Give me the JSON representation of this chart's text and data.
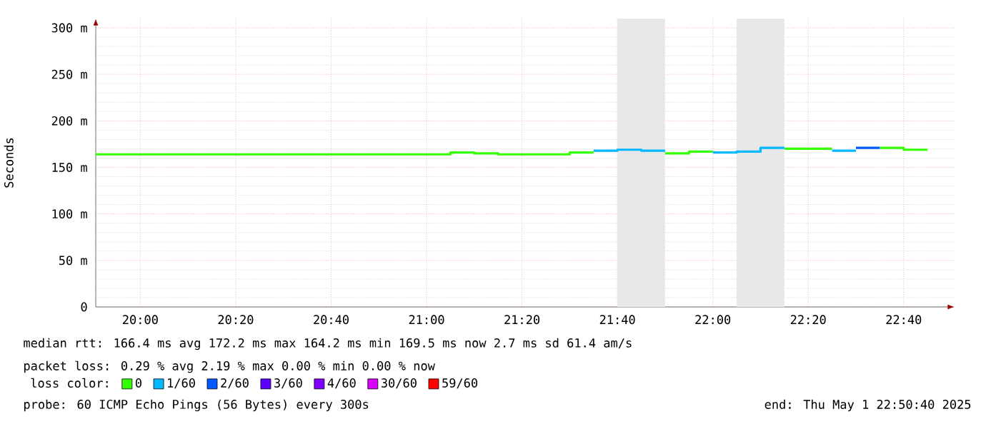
{
  "chart_data": {
    "type": "step",
    "ylabel": "Seconds",
    "legend_title": "loss color:",
    "x": [
      19.8444,
      19.9167,
      20,
      20.0833,
      20.1667,
      20.25,
      20.3333,
      20.4167,
      20.5,
      20.5833,
      20.6667,
      20.75,
      20.8333,
      20.9167,
      21,
      21.0833,
      21.1667,
      21.25,
      21.3333,
      21.4167,
      21.5,
      21.5833,
      21.6667,
      21.75,
      21.8333,
      21.9167,
      22,
      22.0833,
      22.1667,
      22.25,
      22.3333,
      22.4167,
      22.5,
      22.5833,
      22.6667,
      22.75
    ],
    "series": [
      {
        "name": "0",
        "color": "#33ff00",
        "values": [
          164,
          164,
          164,
          164,
          164,
          164,
          164,
          164,
          164,
          164,
          164,
          164,
          164,
          164,
          164,
          166,
          165,
          164,
          164,
          164,
          166,
          166,
          null,
          null,
          165,
          167,
          167,
          null,
          null,
          170,
          170,
          170,
          null,
          171,
          169,
          169
        ]
      },
      {
        "name": "1/60",
        "color": "#00b8ff",
        "values": [
          null,
          null,
          null,
          null,
          null,
          null,
          null,
          null,
          null,
          null,
          null,
          null,
          null,
          null,
          null,
          null,
          null,
          null,
          null,
          null,
          null,
          168,
          169,
          168,
          168,
          null,
          166,
          167,
          171,
          171,
          null,
          168,
          168,
          null,
          null,
          null
        ]
      },
      {
        "name": "2/60",
        "color": "#0059ff",
        "values": [
          null,
          null,
          null,
          null,
          null,
          null,
          null,
          null,
          null,
          null,
          null,
          null,
          null,
          null,
          null,
          null,
          null,
          null,
          null,
          null,
          null,
          null,
          null,
          null,
          null,
          null,
          null,
          null,
          null,
          null,
          null,
          null,
          171,
          171,
          null,
          null
        ]
      },
      {
        "name": "3/60",
        "color": "#5e00ff",
        "values": [
          null,
          null,
          null,
          null,
          null,
          null,
          null,
          null,
          null,
          null,
          null,
          null,
          null,
          null,
          null,
          null,
          null,
          null,
          null,
          null,
          null,
          null,
          null,
          null,
          null,
          null,
          null,
          null,
          null,
          null,
          null,
          null,
          null,
          null,
          null,
          null
        ]
      },
      {
        "name": "4/60",
        "color": "#7e00ff",
        "values": [
          null,
          null,
          null,
          null,
          null,
          null,
          null,
          null,
          null,
          null,
          null,
          null,
          null,
          null,
          null,
          null,
          null,
          null,
          null,
          null,
          null,
          null,
          null,
          null,
          null,
          null,
          null,
          null,
          null,
          null,
          null,
          null,
          null,
          null,
          null,
          null
        ]
      },
      {
        "name": "30/60",
        "color": "#dd00ff",
        "values": [
          null,
          null,
          null,
          null,
          null,
          null,
          null,
          null,
          null,
          null,
          null,
          null,
          null,
          null,
          null,
          null,
          null,
          null,
          null,
          null,
          null,
          null,
          null,
          null,
          null,
          null,
          null,
          null,
          null,
          null,
          null,
          null,
          null,
          null,
          null,
          null
        ]
      },
      {
        "name": "59/60",
        "color": "#ff0000",
        "values": [
          null,
          null,
          null,
          null,
          null,
          null,
          null,
          null,
          null,
          null,
          null,
          null,
          null,
          null,
          null,
          null,
          null,
          null,
          null,
          null,
          null,
          null,
          null,
          null,
          null,
          null,
          null,
          null,
          null,
          null,
          null,
          null,
          null,
          null,
          null,
          null
        ]
      }
    ],
    "bands": [
      {
        "axis": "x",
        "from": 21.6667,
        "to": 21.8333,
        "color": "#e8e8e8"
      },
      {
        "axis": "x",
        "from": 22.0833,
        "to": 22.25,
        "color": "#e8e8e8"
      }
    ],
    "xlim": [
      19.8444,
      22.8444
    ],
    "ylim": [
      0,
      310
    ],
    "xticks": [
      {
        "value": 20,
        "label": "20:00"
      },
      {
        "value": 20.3333,
        "label": "20:20"
      },
      {
        "value": 20.6667,
        "label": "20:40"
      },
      {
        "value": 21,
        "label": "21:00"
      },
      {
        "value": 21.3333,
        "label": "21:20"
      },
      {
        "value": 21.6667,
        "label": "21:40"
      },
      {
        "value": 22,
        "label": "22:00"
      },
      {
        "value": 22.3333,
        "label": "22:20"
      },
      {
        "value": 22.6667,
        "label": "22:40"
      }
    ],
    "yticks": [
      0,
      {
        "value": 50,
        "label": "50 m"
      },
      {
        "value": 100,
        "label": "100 m"
      },
      {
        "value": 150,
        "label": "150 m"
      },
      {
        "value": 200,
        "label": "200 m"
      },
      {
        "value": 250,
        "label": "250 m"
      },
      {
        "value": 300,
        "label": "300 m"
      }
    ],
    "grid": true,
    "legend": "bottom",
    "marker": "none",
    "line_style": "solid",
    "annotations": [
      "median rtt:  166.4 ms avg  172.2 ms max  164.2 ms min  169.5 ms now  2.7 ms sd  61.4   am/s",
      "packet loss: 0.29 % avg  2.19 % max  0.00 % min  0.00 % now",
      "probe:        60 ICMP Echo Pings (56 Bytes) every 300s",
      "end: Thu May  1 22:50:40 2025"
    ]
  }
}
